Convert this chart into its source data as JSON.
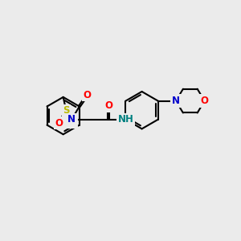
{
  "background_color": "#ebebeb",
  "figure_size": [
    3.0,
    3.0
  ],
  "dpi": 100,
  "atom_colors": {
    "C": "#000000",
    "N": "#0000cc",
    "O": "#ff0000",
    "S": "#bbbb00",
    "NH": "#008080"
  },
  "bond_color": "#000000",
  "bond_lw": 1.5,
  "font_size": 8.5
}
